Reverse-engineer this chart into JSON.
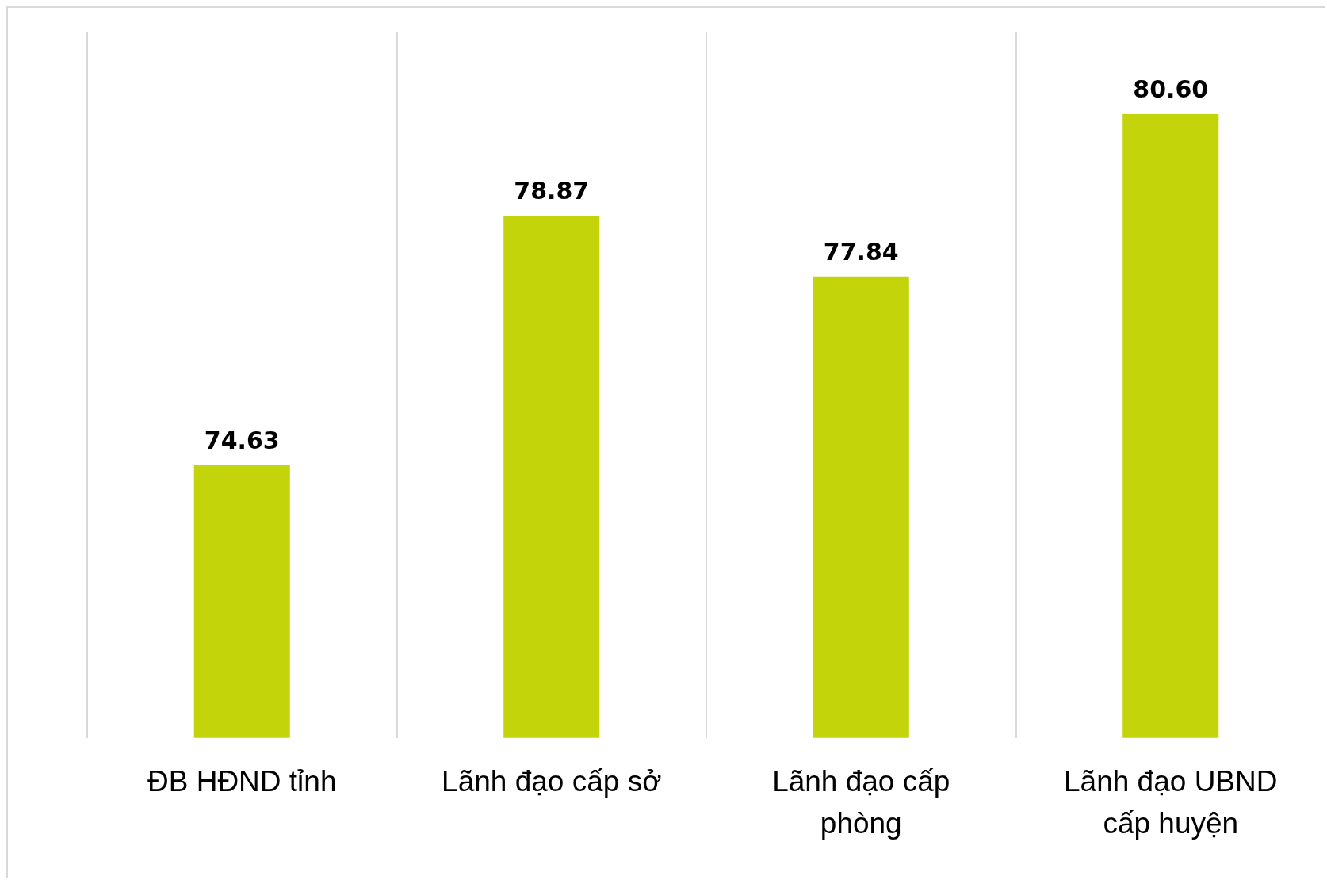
{
  "chart_data": {
    "type": "bar",
    "categories": [
      "ĐB HĐND tỉnh",
      "Lãnh đạo cấp sở",
      "Lãnh đạo cấp phòng",
      "Lãnh đạo UBND cấp huyện"
    ],
    "values": [
      74.63,
      78.87,
      77.84,
      80.6
    ],
    "value_labels": [
      "74.63",
      "78.87",
      "77.84",
      "80.60"
    ],
    "color": "#c4d40a",
    "ylim": [
      70,
      82
    ],
    "grid": "x",
    "tick_labels": "x",
    "legend": false
  }
}
